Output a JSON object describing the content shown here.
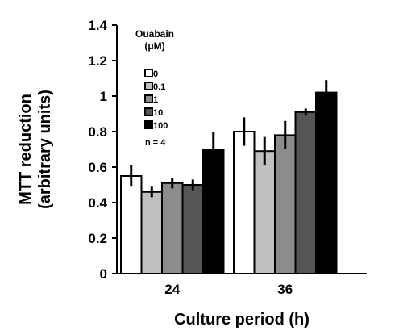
{
  "chart_data": {
    "type": "bar",
    "categories": [
      "24",
      "36"
    ],
    "xlabel": "Culture period (h)",
    "ylabel_line1": "MTT reduction",
    "ylabel_line2": "(arbitrary units)",
    "ylim": [
      0,
      1.4
    ],
    "yticks": [
      "0",
      "0.2",
      "0.4",
      "0.6",
      "0.8",
      "1",
      "1.2",
      "1.4"
    ],
    "legend_title_line1": "Ouabain",
    "legend_title_line2": "(μM)",
    "legend_placement": "top-left",
    "note": "n = 4",
    "grid": false,
    "series": [
      {
        "name": "0",
        "color": "#ffffff",
        "values": [
          0.55,
          0.8
        ],
        "errors": [
          0.06,
          0.08
        ]
      },
      {
        "name": "0.1",
        "color": "#c0c0c0",
        "values": [
          0.46,
          0.69
        ],
        "errors": [
          0.03,
          0.08
        ]
      },
      {
        "name": "1",
        "color": "#8c8c8c",
        "values": [
          0.51,
          0.78
        ],
        "errors": [
          0.03,
          0.08
        ]
      },
      {
        "name": "10",
        "color": "#555555",
        "values": [
          0.5,
          0.91
        ],
        "errors": [
          0.03,
          0.02
        ]
      },
      {
        "name": "100",
        "color": "#000000",
        "values": [
          0.7,
          1.02
        ],
        "errors": [
          0.1,
          0.07
        ]
      }
    ]
  }
}
